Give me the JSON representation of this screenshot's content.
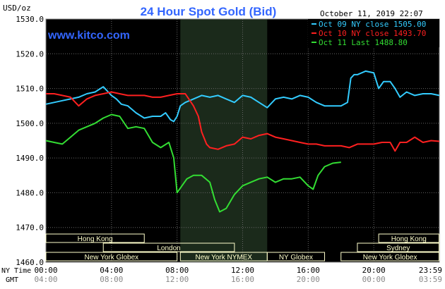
{
  "header": {
    "unit_label": "USD/oz",
    "title": "24 Hour Spot Gold (Bid)",
    "timestamp": "October 11, 2019 22:07",
    "watermark": "www.kitco.com"
  },
  "legend": {
    "items": [
      {
        "label": "Oct 09 NY close 1505.00",
        "color": "#33ccff"
      },
      {
        "label": "Oct 10 NY close 1493.70",
        "color": "#ff2020"
      },
      {
        "label": "Oct 11 Last 1488.80",
        "color": "#33dd33"
      }
    ]
  },
  "axis": {
    "ny_time_label": "NY Time",
    "gmt_label": "GMT",
    "ny_ticks": [
      "00:00",
      "04:00",
      "08:00",
      "12:00",
      "16:00",
      "20:00",
      "23:59"
    ],
    "gmt_ticks": [
      "04:00",
      "08:00",
      "12:00",
      "16:00",
      "20:00",
      "00:00",
      "03:59"
    ]
  },
  "sessions": [
    {
      "label": "Hong Kong",
      "start": 0,
      "end": 6
    },
    {
      "label": "London",
      "start": 3.5,
      "end": 11.5
    },
    {
      "label": "New York Globex",
      "start": 0,
      "end": 8
    },
    {
      "label": "New York NYMEX",
      "start": 8.2,
      "end": 13.5
    },
    {
      "label": "NY Globex",
      "start": 13.5,
      "end": 17
    },
    {
      "label": "Hong Kong",
      "start": 20.3,
      "end": 23.98
    },
    {
      "label": "Sydney",
      "start": 19,
      "end": 23.98
    },
    {
      "label": "New York Globex",
      "start": 18,
      "end": 23.98
    }
  ],
  "colors": {
    "background": "#000000",
    "grid": "#666666",
    "title": "#3366ff",
    "shaded": "#1b2a1b",
    "session_fill": "#ffffcc",
    "session_text": "#000080"
  },
  "chart_data": {
    "type": "line",
    "title": "24 Hour Spot Gold (Bid)",
    "ylabel": "USD/oz",
    "xlim": [
      0,
      24
    ],
    "ylim": [
      1460,
      1530
    ],
    "yticks": [
      "1460.0",
      "1470.0",
      "1480.0",
      "1490.0",
      "1500.0",
      "1510.0",
      "1520.0",
      "1530.0"
    ],
    "grid": true,
    "legend_position": "top-right",
    "shaded_hours": [
      8.2,
      13.5
    ],
    "series": [
      {
        "name": "Oct 09 NY close 1505.00",
        "color": "#33ccff",
        "x": [
          0,
          0.5,
          1,
          1.5,
          2,
          2.5,
          3,
          3.5,
          3.8,
          4,
          4.3,
          4.6,
          5,
          5.5,
          6,
          6.5,
          7,
          7.3,
          7.6,
          7.8,
          8,
          8.2,
          8.5,
          9,
          9.5,
          10,
          10.5,
          11,
          11.5,
          12,
          12.5,
          13,
          13.5,
          14,
          14.5,
          15,
          15.5,
          16,
          16.5,
          17,
          17.5,
          18,
          18.2,
          18.4,
          18.6,
          18.8,
          19,
          19.5,
          20,
          20.3,
          20.6,
          21,
          21.3,
          21.6,
          22,
          22.5,
          23,
          23.5,
          24
        ],
        "y": [
          1505.5,
          1506,
          1506.5,
          1507,
          1507.5,
          1508.5,
          1509,
          1510.5,
          1509,
          1508,
          1507,
          1505.5,
          1505,
          1503,
          1501.5,
          1502,
          1502,
          1503,
          1501,
          1500.5,
          1502,
          1505,
          1506,
          1507,
          1508,
          1507.5,
          1508,
          1507,
          1506,
          1508,
          1507.5,
          1506,
          1504.5,
          1507,
          1507.5,
          1507,
          1508,
          1507.5,
          1506,
          1505,
          1505,
          1505,
          1505.5,
          1506,
          1513,
          1514,
          1514,
          1515,
          1514.5,
          1510,
          1512,
          1512,
          1510,
          1507.5,
          1509,
          1508,
          1508.5,
          1508.5,
          1508
        ]
      },
      {
        "name": "Oct 10 NY close 1493.70",
        "color": "#ff2020",
        "x": [
          0,
          0.5,
          1,
          1.5,
          2,
          2.5,
          3,
          3.5,
          4,
          4.5,
          5,
          5.5,
          6,
          6.5,
          7,
          7.5,
          8,
          8.5,
          9,
          9.3,
          9.5,
          9.8,
          10,
          10.5,
          11,
          11.5,
          12,
          12.5,
          13,
          13.5,
          14,
          14.5,
          15,
          15.5,
          16,
          16.5,
          17,
          17.5,
          18,
          18.5,
          19,
          19.5,
          20,
          20.5,
          21,
          21.3,
          21.6,
          22,
          22.5,
          23,
          23.5,
          24
        ],
        "y": [
          1508.5,
          1508.5,
          1508,
          1507.5,
          1505,
          1507,
          1508,
          1508.5,
          1509,
          1508.5,
          1508,
          1508,
          1508,
          1507.5,
          1507.5,
          1508,
          1508.5,
          1508.5,
          1505,
          1502,
          1497.5,
          1494,
          1493,
          1492.5,
          1493.5,
          1494,
          1496,
          1495.5,
          1496.5,
          1497,
          1496,
          1495.5,
          1495,
          1494.5,
          1494,
          1494,
          1493.5,
          1493.5,
          1493.5,
          1493,
          1494,
          1494,
          1494,
          1494.5,
          1494.5,
          1492,
          1494.5,
          1494.5,
          1496,
          1494.5,
          1495,
          1494.8
        ]
      },
      {
        "name": "Oct 11 Last 1488.80",
        "color": "#33dd33",
        "x": [
          0,
          0.5,
          1,
          1.5,
          2,
          2.5,
          3,
          3.5,
          4,
          4.5,
          5,
          5.5,
          6,
          6.5,
          7,
          7.5,
          7.8,
          8,
          8.3,
          8.6,
          9,
          9.5,
          10,
          10.3,
          10.6,
          11,
          11.5,
          12,
          12.5,
          13,
          13.5,
          14,
          14.5,
          15,
          15.5,
          16,
          16.3,
          16.6,
          17,
          17.5,
          18
        ],
        "y": [
          1495,
          1494.5,
          1494,
          1496,
          1498,
          1499,
          1500,
          1501.5,
          1502.5,
          1502,
          1498.5,
          1499,
          1498.5,
          1494.5,
          1493,
          1494.5,
          1490,
          1480,
          1482,
          1484,
          1485,
          1485,
          1483,
          1478,
          1474.5,
          1475.5,
          1479.5,
          1482,
          1483,
          1484,
          1484.5,
          1483,
          1484,
          1484,
          1484.5,
          1482,
          1481,
          1485,
          1487.5,
          1488.5,
          1488.8
        ]
      }
    ]
  }
}
